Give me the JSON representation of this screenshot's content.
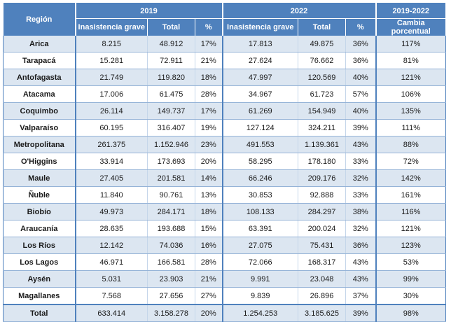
{
  "header": {
    "region": "Región",
    "y2019": "2019",
    "y2022": "2022",
    "change": "2019-2022",
    "sub": {
      "inasistencia": "Inasistencia grave",
      "total": "Total",
      "pct": "%",
      "cambio": "Cambia porcentual"
    }
  },
  "rows": [
    {
      "region": "Arica",
      "i19": "8.215",
      "t19": "48.912",
      "p19": "17%",
      "i22": "17.813",
      "t22": "49.875",
      "p22": "36%",
      "chg": "117%"
    },
    {
      "region": "Tarapacá",
      "i19": "15.281",
      "t19": "72.911",
      "p19": "21%",
      "i22": "27.624",
      "t22": "76.662",
      "p22": "36%",
      "chg": "81%"
    },
    {
      "region": "Antofagasta",
      "i19": "21.749",
      "t19": "119.820",
      "p19": "18%",
      "i22": "47.997",
      "t22": "120.569",
      "p22": "40%",
      "chg": "121%"
    },
    {
      "region": "Atacama",
      "i19": "17.006",
      "t19": "61.475",
      "p19": "28%",
      "i22": "34.967",
      "t22": "61.723",
      "p22": "57%",
      "chg": "106%"
    },
    {
      "region": "Coquimbo",
      "i19": "26.114",
      "t19": "149.737",
      "p19": "17%",
      "i22": "61.269",
      "t22": "154.949",
      "p22": "40%",
      "chg": "135%"
    },
    {
      "region": "Valparaíso",
      "i19": "60.195",
      "t19": "316.407",
      "p19": "19%",
      "i22": "127.124",
      "t22": "324.211",
      "p22": "39%",
      "chg": "111%"
    },
    {
      "region": "Metropolitana",
      "i19": "261.375",
      "t19": "1.152.946",
      "p19": "23%",
      "i22": "491.553",
      "t22": "1.139.361",
      "p22": "43%",
      "chg": "88%"
    },
    {
      "region": "O'Higgins",
      "i19": "33.914",
      "t19": "173.693",
      "p19": "20%",
      "i22": "58.295",
      "t22": "178.180",
      "p22": "33%",
      "chg": "72%"
    },
    {
      "region": "Maule",
      "i19": "27.405",
      "t19": "201.581",
      "p19": "14%",
      "i22": "66.246",
      "t22": "209.176",
      "p22": "32%",
      "chg": "142%"
    },
    {
      "region": "Ñuble",
      "i19": "11.840",
      "t19": "90.761",
      "p19": "13%",
      "i22": "30.853",
      "t22": "92.888",
      "p22": "33%",
      "chg": "161%"
    },
    {
      "region": "Biobío",
      "i19": "49.973",
      "t19": "284.171",
      "p19": "18%",
      "i22": "108.133",
      "t22": "284.297",
      "p22": "38%",
      "chg": "116%"
    },
    {
      "region": "Araucanía",
      "i19": "28.635",
      "t19": "193.688",
      "p19": "15%",
      "i22": "63.391",
      "t22": "200.024",
      "p22": "32%",
      "chg": "121%"
    },
    {
      "region": "Los Ríos",
      "i19": "12.142",
      "t19": "74.036",
      "p19": "16%",
      "i22": "27.075",
      "t22": "75.431",
      "p22": "36%",
      "chg": "123%"
    },
    {
      "region": "Los Lagos",
      "i19": "46.971",
      "t19": "166.581",
      "p19": "28%",
      "i22": "72.066",
      "t22": "168.317",
      "p22": "43%",
      "chg": "53%"
    },
    {
      "region": "Aysén",
      "i19": "5.031",
      "t19": "23.903",
      "p19": "21%",
      "i22": "9.991",
      "t22": "23.048",
      "p22": "43%",
      "chg": "99%"
    },
    {
      "region": "Magallanes",
      "i19": "7.568",
      "t19": "27.656",
      "p19": "27%",
      "i22": "9.839",
      "t22": "26.896",
      "p22": "37%",
      "chg": "30%"
    }
  ],
  "total": {
    "region": "Total",
    "i19": "633.414",
    "t19": "3.158.278",
    "p19": "20%",
    "i22": "1.254.253",
    "t22": "3.185.625",
    "p22": "39%",
    "chg": "98%"
  }
}
